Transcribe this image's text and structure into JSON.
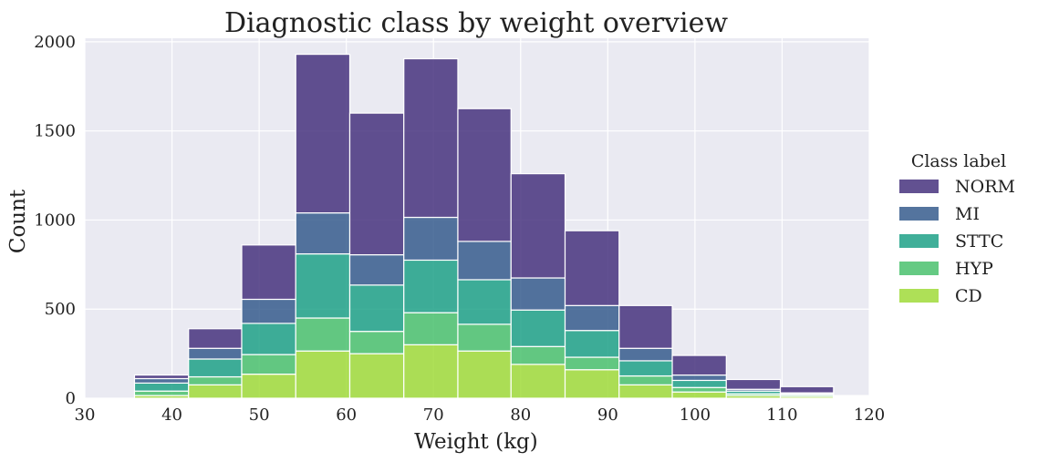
{
  "chart_data": {
    "type": "bar",
    "title": "Diagnostic class by weight overview",
    "xlabel": "Weight (kg)",
    "ylabel": "Count",
    "xlim": [
      30,
      120
    ],
    "ylim": [
      0,
      2020
    ],
    "xticks": [
      30,
      40,
      50,
      60,
      70,
      80,
      90,
      100,
      110,
      120
    ],
    "yticks": [
      0,
      500,
      1000,
      1500,
      2000
    ],
    "grid": true,
    "stacked": true,
    "legend": {
      "title": "Class label",
      "position": "right"
    },
    "bin_edges": [
      35.7,
      41.9,
      48.0,
      54.2,
      60.4,
      66.6,
      72.8,
      78.9,
      85.1,
      91.3,
      97.4,
      103.6,
      109.8,
      115.9,
      122.1
    ],
    "series": [
      {
        "name": "CD",
        "color": "#a0da39",
        "values": [
          15,
          75,
          135,
          265,
          250,
          300,
          265,
          190,
          160,
          75,
          35,
          15,
          10,
          5
        ]
      },
      {
        "name": "HYP",
        "color": "#4ac16d",
        "values": [
          25,
          45,
          110,
          185,
          125,
          180,
          150,
          100,
          70,
          50,
          25,
          10,
          8,
          3
        ]
      },
      {
        "name": "STTC",
        "color": "#1fa187",
        "values": [
          45,
          100,
          175,
          360,
          260,
          295,
          250,
          205,
          150,
          85,
          40,
          15,
          7,
          2
        ]
      },
      {
        "name": "MI",
        "color": "#365c8d",
        "values": [
          25,
          60,
          135,
          230,
          170,
          240,
          215,
          180,
          140,
          70,
          30,
          10,
          5,
          2
        ]
      },
      {
        "name": "NORM",
        "color": "#46327e",
        "values": [
          20,
          110,
          305,
          890,
          795,
          890,
          745,
          585,
          420,
          240,
          110,
          55,
          35,
          3
        ]
      }
    ]
  }
}
